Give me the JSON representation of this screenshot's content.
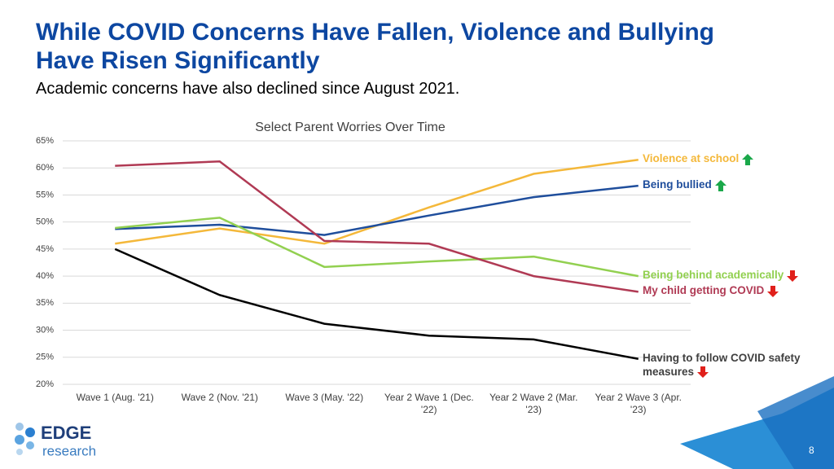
{
  "slide": {
    "title": "While COVID Concerns Have Fallen, Violence and Bullying Have Risen Significantly",
    "subtitle": "Academic concerns have also declined since August 2021.",
    "logo_top": "EDGE",
    "logo_bottom": "research",
    "page_number": "8"
  },
  "chart_data": {
    "type": "line",
    "title": "Select Parent Worries Over Time",
    "categories": [
      "Wave 1 (Aug. '21)",
      "Wave 2 (Nov. '21)",
      "Wave 3 (May. '22)",
      "Year 2 Wave 1 (Dec. '22)",
      "Year 2 Wave 2 (Mar. '23)",
      "Year 2 Wave 3 (Apr. '23)"
    ],
    "series": [
      {
        "name": "Violence at school",
        "color": "#f4b83a",
        "values": [
          46.0,
          48.8,
          46.0,
          52.7,
          58.9,
          61.5
        ]
      },
      {
        "name": "Being bullied",
        "color": "#1f4e9c",
        "values": [
          48.7,
          49.5,
          47.6,
          51.2,
          54.6,
          56.7
        ]
      },
      {
        "name": "Being behind academically",
        "color": "#92d050",
        "values": [
          48.9,
          50.8,
          41.7,
          42.7,
          43.6,
          40.0
        ]
      },
      {
        "name": "My child getting COVID",
        "color": "#b03a54",
        "values": [
          60.4,
          61.2,
          46.5,
          46.0,
          40.0,
          37.1
        ]
      },
      {
        "name": "Having to follow COVID safety measures",
        "color": "#000000",
        "values": [
          45.0,
          36.5,
          31.2,
          29.0,
          28.3,
          24.7
        ]
      }
    ],
    "ylim": [
      20,
      65
    ],
    "yticks": [
      {
        "value": 20,
        "label": "20%"
      },
      {
        "value": 25,
        "label": "25%"
      },
      {
        "value": 30,
        "label": "30%"
      },
      {
        "value": 35,
        "label": "35%"
      },
      {
        "value": 40,
        "label": "40%"
      },
      {
        "value": 45,
        "label": "45%"
      },
      {
        "value": 50,
        "label": "50%"
      },
      {
        "value": 55,
        "label": "55%"
      },
      {
        "value": 60,
        "label": "60%"
      },
      {
        "value": 65,
        "label": "65%"
      }
    ],
    "grid": true
  }
}
